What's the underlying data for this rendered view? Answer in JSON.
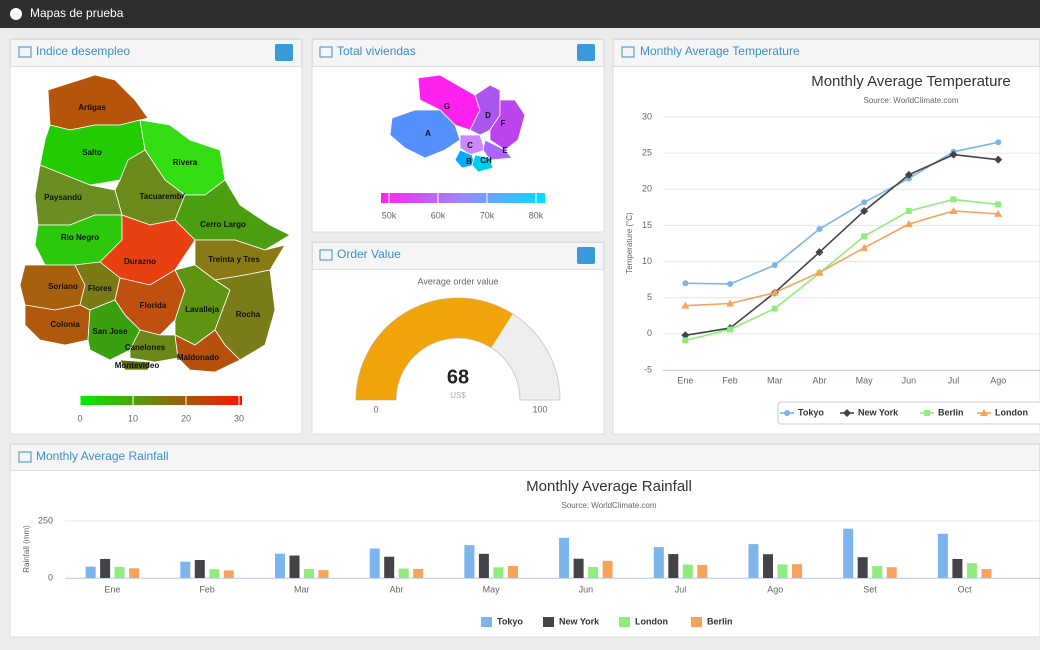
{
  "header": {
    "title": "Mapas de prueba"
  },
  "panels": [
    {
      "title": "Indice desempleo"
    },
    {
      "title": "Total viviendas"
    },
    {
      "title": "Order Value"
    },
    {
      "title": "Monthly Average Temperature"
    },
    {
      "title": "Monthly Average Rainfall"
    }
  ],
  "maps": [
    {
      "regions": [
        {
          "name": "Artigas",
          "color": "#b5540a"
        },
        {
          "name": "Salto",
          "color": "#22cc00"
        },
        {
          "name": "Rivera",
          "color": "#33dd11"
        },
        {
          "name": "Tacuarembó",
          "color": "#6a8a1a"
        },
        {
          "name": "Paysandú",
          "color": "#6b8e23"
        },
        {
          "name": "Cerro Largo",
          "color": "#4a9e10"
        },
        {
          "name": "Rio Negro",
          "color": "#2bc80c"
        },
        {
          "name": "Durazno",
          "color": "#e84010"
        },
        {
          "name": "Treinta y Tres",
          "color": "#8a7a15"
        },
        {
          "name": "Soriano",
          "color": "#a8600c"
        },
        {
          "name": "Flores",
          "color": "#7a7a15"
        },
        {
          "name": "Florida",
          "color": "#c05010"
        },
        {
          "name": "Lavalleja",
          "color": "#5e9412"
        },
        {
          "name": "Rocha",
          "color": "#7a7c18"
        },
        {
          "name": "Colonia",
          "color": "#b0580c"
        },
        {
          "name": "San Jose",
          "color": "#3aa010"
        },
        {
          "name": "Canelones",
          "color": "#6a8818"
        },
        {
          "name": "Maldonado",
          "color": "#b8500c"
        },
        {
          "name": "Montevideo",
          "color": "#5a7010"
        }
      ],
      "legend_ticks": [
        0,
        10,
        20,
        30
      ]
    },
    {
      "regions": [
        {
          "name": "G",
          "color": "#ff22ee"
        },
        {
          "name": "A",
          "color": "#5590ff"
        },
        {
          "name": "D",
          "color": "#aa55ee"
        },
        {
          "name": "F",
          "color": "#bb44ee"
        },
        {
          "name": "C",
          "color": "#cc88ff"
        },
        {
          "name": "E",
          "color": "#aa66ff"
        },
        {
          "name": "B",
          "color": "#00aaff"
        },
        {
          "name": "CH",
          "color": "#00ccee"
        }
      ],
      "legend_ticks": [
        {
          "value": 50000,
          "label": "50k"
        },
        {
          "value": 60000,
          "label": "60k"
        },
        {
          "value": 70000,
          "label": "70k"
        },
        {
          "value": 80000,
          "label": "80k"
        }
      ]
    }
  ],
  "chart_data": [
    {
      "type": "line",
      "title": "Monthly Average Temperature",
      "subtitle": "Source: WorldClimate.com",
      "y_label": "Temperature (°C)",
      "categories": [
        "Ene",
        "Feb",
        "Mar",
        "Abr",
        "May",
        "Jun",
        "Jul",
        "Ago"
      ],
      "series": [
        {
          "name": "Tokyo",
          "color": "#7cb5ec",
          "marker": "circle",
          "values": [
            7.0,
            6.9,
            9.5,
            14.5,
            18.2,
            21.5,
            25.2,
            26.5
          ]
        },
        {
          "name": "New York",
          "color": "#434348",
          "marker": "diamond",
          "values": [
            -0.2,
            0.8,
            5.7,
            11.3,
            17.0,
            22.0,
            24.8,
            24.1
          ]
        },
        {
          "name": "Berlin",
          "color": "#90ed7d",
          "marker": "square",
          "values": [
            -0.9,
            0.6,
            3.5,
            8.4,
            13.5,
            17.0,
            18.6,
            17.9
          ]
        },
        {
          "name": "London",
          "color": "#f7a35c",
          "marker": "triangle",
          "values": [
            3.9,
            4.2,
            5.7,
            8.5,
            11.9,
            15.2,
            17.0,
            16.6
          ]
        }
      ],
      "ylim": [
        -5,
        30
      ],
      "yticks": [
        -5,
        0,
        5,
        10,
        15,
        20,
        25,
        30
      ],
      "grid": true
    },
    {
      "type": "gauge",
      "title": "Average order value",
      "value": 68,
      "unit": "US$",
      "ylim": [
        0,
        100
      ],
      "yticks": [
        0,
        100
      ],
      "color": "#f0a30a"
    },
    {
      "type": "bar",
      "title": "Monthly Average Rainfall",
      "subtitle": "Source: WorldClimate.com",
      "y_label": "Rainfall (mm)",
      "categories": [
        "Ene",
        "Feb",
        "Mar",
        "Abr",
        "May",
        "Jun",
        "Jul",
        "Ago",
        "Set",
        "Oct"
      ],
      "series": [
        {
          "name": "Tokyo",
          "color": "#7cb5ec",
          "values": [
            49.9,
            71.5,
            106.4,
            129.2,
            144.0,
            176.0,
            135.6,
            148.5,
            216.4,
            194.1
          ]
        },
        {
          "name": "New York",
          "color": "#434348",
          "values": [
            83.6,
            78.8,
            98.5,
            93.4,
            106.0,
            84.5,
            105.0,
            104.3,
            91.2,
            83.5
          ]
        },
        {
          "name": "London",
          "color": "#90ed7d",
          "values": [
            48.9,
            38.8,
            39.3,
            41.4,
            47.0,
            48.3,
            59.0,
            59.6,
            52.4,
            65.2
          ]
        },
        {
          "name": "Berlin",
          "color": "#f7a35c",
          "values": [
            42.4,
            33.2,
            34.5,
            39.7,
            52.6,
            75.5,
            57.4,
            60.4,
            47.6,
            39.1
          ]
        }
      ],
      "ylim": [
        0,
        250
      ],
      "yticks": [
        0,
        250
      ],
      "grid": true
    }
  ]
}
